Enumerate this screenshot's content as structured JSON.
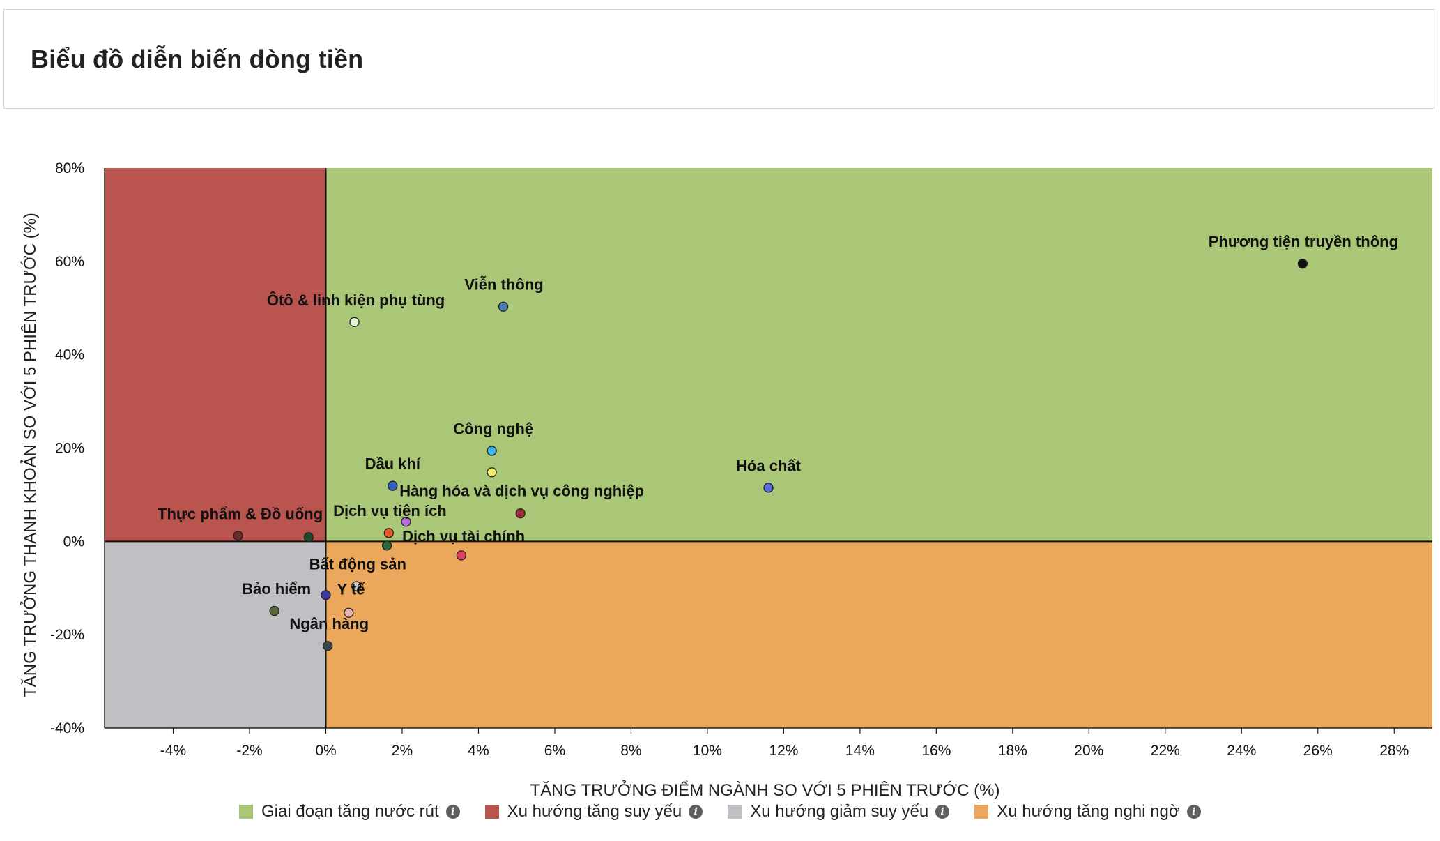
{
  "page": {
    "title": "Biểu đồ diễn biến dòng tiền"
  },
  "chart_data": {
    "type": "scatter",
    "title": "",
    "xlabel": "TĂNG TRƯỞNG ĐIỂM NGÀNH SO VỚI 5 PHIÊN TRƯỚC (%)",
    "ylabel": "TĂNG TRƯỞNG THANH KHOẢN SO VỚI 5 PHIÊN TRƯỚC (%)",
    "xlim": [
      -5.8,
      29
    ],
    "ylim": [
      -40,
      80
    ],
    "x_ticks": [
      -4,
      -2,
      0,
      2,
      4,
      6,
      8,
      10,
      12,
      14,
      16,
      18,
      20,
      22,
      24,
      26,
      28
    ],
    "x_tick_labels": [
      "-4%",
      "-2%",
      "0%",
      "2%",
      "4%",
      "6%",
      "8%",
      "10%",
      "12%",
      "14%",
      "16%",
      "18%",
      "20%",
      "22%",
      "24%",
      "26%",
      "28%"
    ],
    "y_ticks": [
      -40,
      -20,
      0,
      20,
      40,
      60,
      80
    ],
    "y_tick_labels": [
      "-40%",
      "-20%",
      "0%",
      "20%",
      "40%",
      "60%",
      "80%"
    ],
    "grid": false,
    "legend_position": "bottom-center",
    "quadrants": [
      {
        "name": "Giai đoạn tăng nước rút",
        "x_range": [
          0,
          29
        ],
        "y_range": [
          0,
          80
        ],
        "color": "#a9c777"
      },
      {
        "name": "Xu hướng tăng suy yếu",
        "x_range": [
          -5.8,
          0
        ],
        "y_range": [
          0,
          80
        ],
        "color": "#b9544e"
      },
      {
        "name": "Xu hướng giảm suy yếu",
        "x_range": [
          -5.8,
          0
        ],
        "y_range": [
          -40,
          0
        ],
        "color": "#c0c0c4"
      },
      {
        "name": "Xu hướng tăng nghi ngờ",
        "x_range": [
          0,
          29
        ],
        "y_range": [
          -40,
          0
        ],
        "color": "#eba75c"
      }
    ],
    "points": [
      {
        "label": "Phương tiện truyền thông",
        "x": 25.6,
        "y": 59.5,
        "color": "#111111"
      },
      {
        "label": "Viễn thông",
        "x": 4.65,
        "y": 50.3,
        "color": "#4a7fb0"
      },
      {
        "label": "Ôtô & linh kiện phụ tùng",
        "x": 0.75,
        "y": 47.0,
        "color": "#e8f3dc"
      },
      {
        "label": "Công nghệ",
        "x": 4.35,
        "y": 19.4,
        "color": "#3ab3e6"
      },
      {
        "label": "Hóa chất",
        "x": 11.6,
        "y": 11.5,
        "color": "#5a6be0"
      },
      {
        "label": "Dầu khí",
        "x": 1.75,
        "y": 11.9,
        "color": "#2f62c4"
      },
      {
        "label": "Hàng hóa và dịch vụ công nghiệp",
        "x": 4.35,
        "y": 14.8,
        "color": "#f4ee6a"
      },
      {
        "label": "",
        "x": 5.1,
        "y": 6.0,
        "color": "#a02a3a"
      },
      {
        "label": "Dịch vụ tiện ích",
        "x": 2.1,
        "y": 4.2,
        "color": "#b46ae0"
      },
      {
        "label": "Thực phẩm & Đồ uống",
        "x": -2.3,
        "y": 1.2,
        "color": "#6a2a2a"
      },
      {
        "label": "",
        "x": -0.45,
        "y": 0.9,
        "color": "#1f4a2a"
      },
      {
        "label": "",
        "x": 1.65,
        "y": 1.8,
        "color": "#e85a2a"
      },
      {
        "label": "Dịch vụ tài chính",
        "x": 1.6,
        "y": -0.9,
        "color": "#2a6a3a"
      },
      {
        "label": "",
        "x": 3.55,
        "y": -3.0,
        "color": "#e0405a"
      },
      {
        "label": "Bất động sản",
        "x": 0.8,
        "y": -9.6,
        "color": "#c8c8c8"
      },
      {
        "label": "Bảo hiểm",
        "x": -1.35,
        "y": -14.9,
        "color": "#5a6a3a"
      },
      {
        "label": "Y tế",
        "x": 0.0,
        "y": -11.5,
        "color": "#3a3aa0"
      },
      {
        "label": "",
        "x": 0.6,
        "y": -15.3,
        "color": "#e8b0b0"
      },
      {
        "label": "Ngân hàng",
        "x": 0.05,
        "y": -22.4,
        "color": "#3a4a4a"
      }
    ]
  },
  "legend": {
    "items": [
      {
        "label": "Giai đoạn tăng nước rút",
        "color": "#a9c777",
        "icon": "info-icon"
      },
      {
        "label": "Xu hướng tăng suy yếu",
        "color": "#b9544e",
        "icon": "info-icon"
      },
      {
        "label": "Xu hướng giảm suy yếu",
        "color": "#c0c0c4",
        "icon": "info-icon"
      },
      {
        "label": "Xu hướng tăng nghi ngờ",
        "color": "#eba75c",
        "icon": "info-icon"
      }
    ],
    "info_glyph": "i"
  }
}
